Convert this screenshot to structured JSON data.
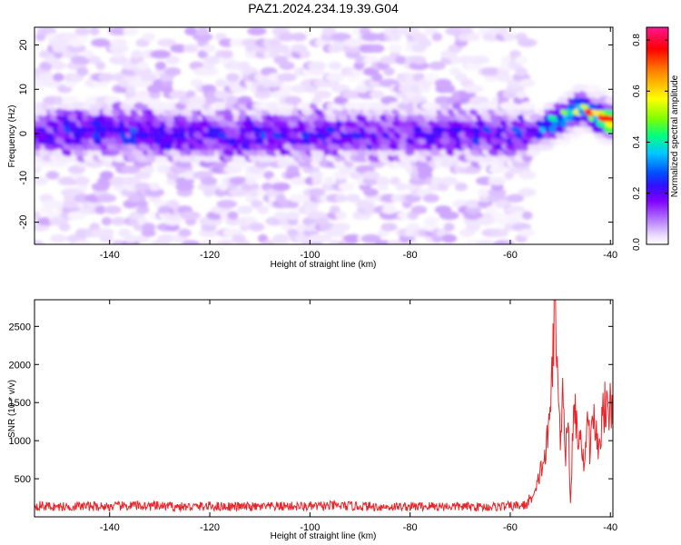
{
  "figure": {
    "title": "PAZ1.2024.234.19.39.G04"
  },
  "chart_data": [
    {
      "type": "heatmap",
      "title": "PAZ1.2024.234.19.39.G04",
      "xlabel": "Height of straight line (km)",
      "ylabel": "Frequency (Hz)",
      "xlim": [
        -155,
        -39.5
      ],
      "ylim": [
        -25,
        24
      ],
      "x_ticks": [
        -140,
        -120,
        -100,
        -80,
        -60,
        -40
      ],
      "y_ticks": [
        -20,
        -10,
        0,
        10,
        20
      ],
      "colorbar": {
        "label": "Normalized spectral amplitude",
        "range": [
          0,
          0.85
        ],
        "ticks": [
          0.0,
          0.2,
          0.4,
          0.6,
          0.8
        ],
        "colormap": [
          "#ffffff",
          "#ecdcff",
          "#b070ff",
          "#8000ff",
          "#3010ff",
          "#0050ff",
          "#00c8ff",
          "#00ff80",
          "#80ff00",
          "#ffff00",
          "#ff8000",
          "#ff0000",
          "#ff1493"
        ]
      },
      "signal_band": {
        "center_frequency_hz": [
          [
            -155,
            0
          ],
          [
            -140,
            1
          ],
          [
            -125,
            0
          ],
          [
            -110,
            0
          ],
          [
            -95,
            0
          ],
          [
            -80,
            0
          ],
          [
            -65,
            0
          ],
          [
            -55,
            0
          ],
          [
            -50,
            3
          ],
          [
            -45,
            6
          ],
          [
            -42,
            4
          ],
          [
            -39.5,
            3
          ]
        ],
        "peak_amplitude": [
          [
            -155,
            0.25
          ],
          [
            -140,
            0.27
          ],
          [
            -125,
            0.25
          ],
          [
            -110,
            0.25
          ],
          [
            -95,
            0.24
          ],
          [
            -80,
            0.24
          ],
          [
            -65,
            0.24
          ],
          [
            -56,
            0.25
          ],
          [
            -52,
            0.45
          ],
          [
            -48,
            0.55
          ],
          [
            -45,
            0.6
          ],
          [
            -42,
            0.72
          ],
          [
            -40,
            0.85
          ]
        ]
      }
    },
    {
      "type": "line",
      "xlabel": "Height of straight line (km)",
      "ylabel": "SNR (10 * v/v)",
      "xlim": [
        -155,
        -39.5
      ],
      "ylim": [
        0,
        2850
      ],
      "x_ticks": [
        -140,
        -120,
        -100,
        -80,
        -60,
        -40
      ],
      "y_ticks": [
        500,
        1000,
        1500,
        2000,
        2500
      ],
      "series": [
        {
          "color": "#e8262a",
          "x": [
            -155,
            -150,
            -145,
            -140,
            -135,
            -130,
            -125,
            -120,
            -115,
            -110,
            -105,
            -100,
            -95,
            -90,
            -85,
            -80,
            -75,
            -70,
            -65,
            -60,
            -57,
            -55,
            -54,
            -53,
            -52,
            -51.5,
            -51,
            -50.5,
            -50,
            -49.5,
            -49,
            -48.5,
            -48,
            -47.5,
            -47,
            -46.5,
            -46,
            -45.5,
            -45,
            -44.5,
            -44,
            -43.5,
            -43,
            -42.5,
            -42,
            -41.5,
            -41,
            -40.5,
            -40,
            -39.5
          ],
          "values": [
            150,
            130,
            140,
            135,
            145,
            140,
            130,
            140,
            135,
            130,
            140,
            135,
            145,
            140,
            130,
            135,
            140,
            135,
            130,
            140,
            150,
            300,
            600,
            800,
            1300,
            2400,
            2850,
            1700,
            1000,
            1950,
            700,
            1500,
            120,
            1100,
            1400,
            1000,
            1250,
            700,
            900,
            1300,
            800,
            1400,
            1150,
            900,
            1100,
            1350,
            1550,
            1200,
            1500,
            1600
          ]
        }
      ]
    }
  ]
}
